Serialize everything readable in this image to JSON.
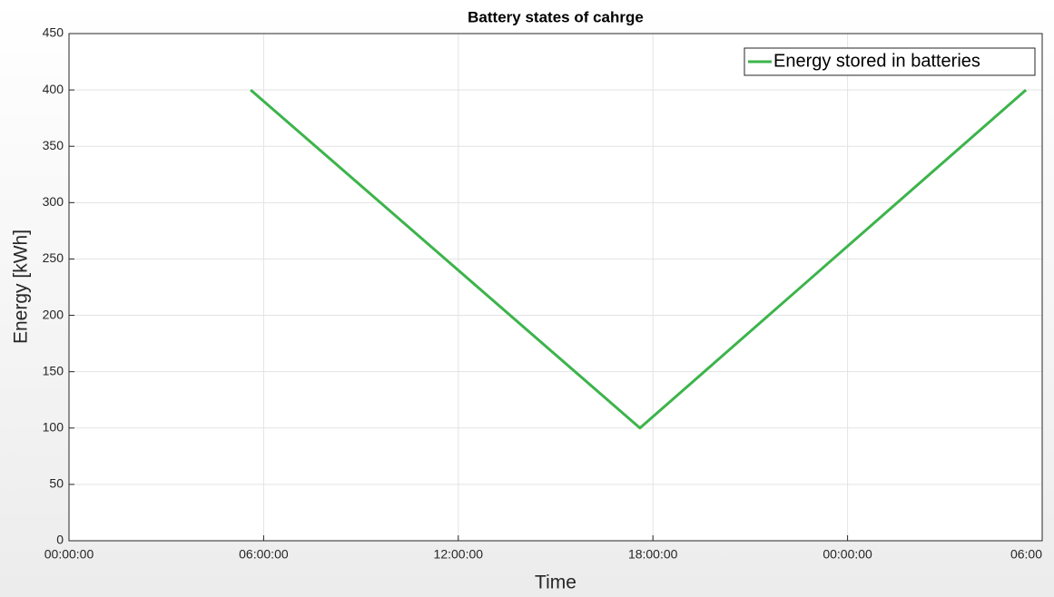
{
  "chart_data": {
    "type": "line",
    "title": "Battery states of cahrge",
    "xlabel": "Time",
    "ylabel": "Energy [kWh]",
    "x": [
      5.6,
      17.6,
      29.5
    ],
    "series": [
      {
        "name": "Energy stored in batteries",
        "color": "#3cb44b",
        "values": [
          400,
          100,
          400
        ]
      }
    ],
    "xlim": [
      0,
      30
    ],
    "xticks": [
      {
        "value": 0,
        "label": "00:00:00"
      },
      {
        "value": 6,
        "label": "06:00:00"
      },
      {
        "value": 12,
        "label": "12:00:00"
      },
      {
        "value": 18,
        "label": "18:00:00"
      },
      {
        "value": 24,
        "label": "00:00:00"
      },
      {
        "value": 30,
        "label": "06:00"
      }
    ],
    "ylim": [
      0,
      450
    ],
    "yticks": [
      0,
      50,
      100,
      150,
      200,
      250,
      300,
      350,
      400,
      450
    ],
    "grid": true,
    "legend": "northeast"
  }
}
